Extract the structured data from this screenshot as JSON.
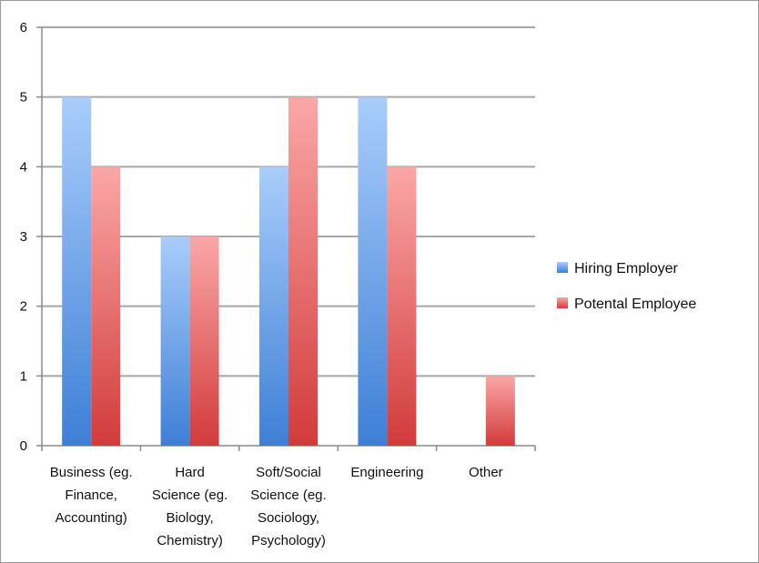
{
  "chart_data": {
    "type": "bar",
    "categories": [
      "Business (eg. Finance, Accounting)",
      "Hard Science (eg. Biology, Chemistry)",
      "Soft/Social Science (eg. Sociology, Psychology)",
      "Engineering",
      "Other"
    ],
    "category_label_lines": [
      [
        "Business (eg.",
        "Finance,",
        "Accounting)"
      ],
      [
        "Hard",
        "Science (eg.",
        "Biology,",
        "Chemistry)"
      ],
      [
        "Soft/Social",
        "Science (eg.",
        "Sociology,",
        "Psychology)"
      ],
      [
        "Engineering"
      ],
      [
        "Other"
      ]
    ],
    "series": [
      {
        "name": "Hiring Employer",
        "values": [
          5,
          3,
          4,
          5,
          0
        ],
        "color_light": "#a9cdfb",
        "color_dark": "#3e7fd6"
      },
      {
        "name": "Potental Employee",
        "values": [
          4,
          3,
          5,
          4,
          1
        ],
        "color_light": "#fba7a7",
        "color_dark": "#d23b3b"
      }
    ],
    "y_ticks": [
      0,
      1,
      2,
      3,
      4,
      5,
      6
    ],
    "ylim": [
      0,
      6
    ],
    "grid": true,
    "legend_position": "right",
    "title": "",
    "xlabel": "",
    "ylabel": ""
  }
}
